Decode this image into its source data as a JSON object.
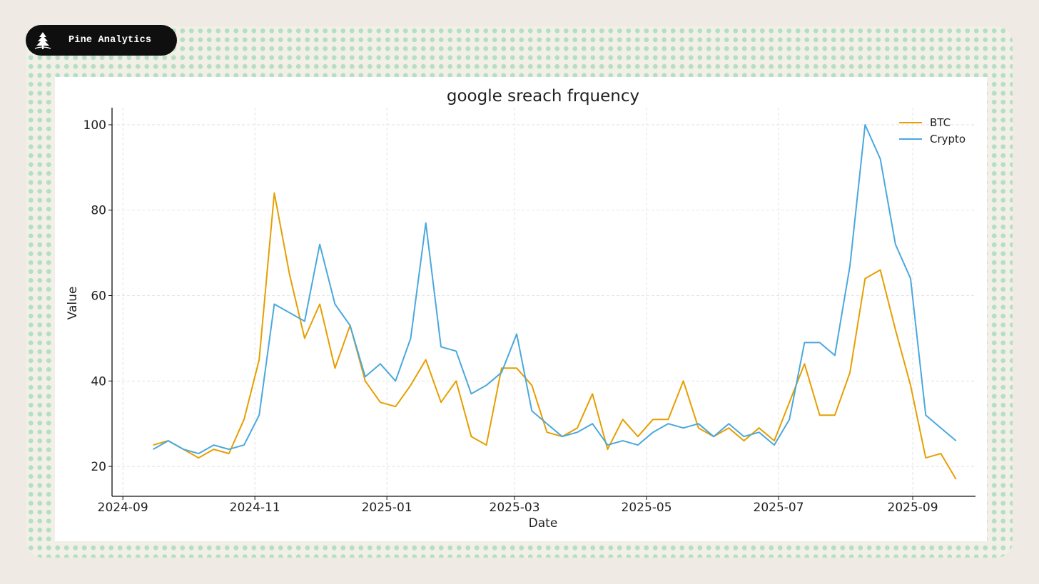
{
  "header": {
    "brand": "Pine Analytics",
    "logo_icon": "pine-tree-icon"
  },
  "colors": {
    "btc": "#E69F00",
    "crypto": "#4AA8DE",
    "badge_bg": "#0f0f0f",
    "page_bg": "#efebe4"
  },
  "chart_data": {
    "type": "line",
    "title": "google sreach frquency",
    "xlabel": "Date",
    "ylabel": "Value",
    "x_tick_labels": [
      "2024-09",
      "2024-11",
      "2025-01",
      "2025-03",
      "2025-05",
      "2025-07",
      "2025-09"
    ],
    "x_tick_dates": [
      "2024-09-01",
      "2024-11-01",
      "2025-01-01",
      "2025-03-01",
      "2025-05-01",
      "2025-07-01",
      "2025-09-01"
    ],
    "y_ticks": [
      20,
      40,
      60,
      80,
      100
    ],
    "y_tick_labels": [
      "20",
      "40",
      "60",
      "80",
      "100"
    ],
    "xlim": [
      "2024-08-27",
      "2025-09-30"
    ],
    "ylim": [
      13,
      104
    ],
    "grid": true,
    "legend_position": "top-right",
    "start_date": "2024-09-15",
    "interval_days": 7,
    "series": [
      {
        "name": "BTC",
        "color_key": "btc",
        "values": [
          25,
          26,
          24,
          22,
          24,
          23,
          31,
          45,
          84,
          65,
          50,
          58,
          43,
          53,
          40,
          35,
          34,
          39,
          45,
          35,
          40,
          27,
          25,
          43,
          43,
          39,
          28,
          27,
          29,
          37,
          24,
          31,
          27,
          31,
          31,
          40,
          29,
          27,
          29,
          26,
          29,
          26,
          35,
          44,
          32,
          32,
          42,
          64,
          66,
          52,
          39,
          22,
          23,
          17
        ]
      },
      {
        "name": "Crypto",
        "color_key": "crypto",
        "values": [
          24,
          26,
          24,
          23,
          25,
          24,
          25,
          32,
          58,
          56,
          54,
          72,
          58,
          53,
          41,
          44,
          40,
          50,
          77,
          48,
          47,
          37,
          39,
          42,
          51,
          33,
          30,
          27,
          28,
          30,
          25,
          26,
          25,
          28,
          30,
          29,
          30,
          27,
          30,
          27,
          28,
          25,
          31,
          49,
          49,
          46,
          67,
          100,
          92,
          72,
          64,
          32,
          29,
          26
        ]
      }
    ]
  }
}
